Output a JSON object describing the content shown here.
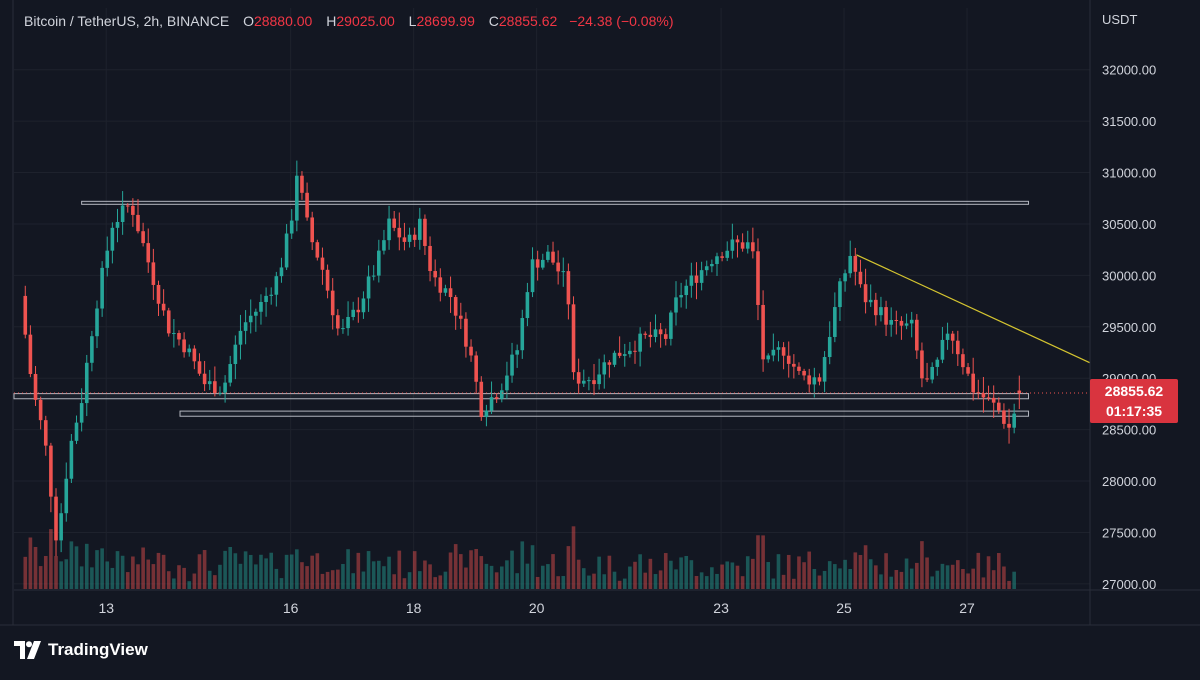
{
  "legend": {
    "symbol": "Bitcoin / TetherUS, 2h, BINANCE",
    "o_label": "O",
    "o_value": "28880.00",
    "h_label": "H",
    "h_value": "29025.00",
    "l_label": "L",
    "l_value": "28699.99",
    "c_label": "C",
    "c_value": "28855.62",
    "change": "−24.38 (−0.08%)"
  },
  "price_tag": {
    "price": "28855.62",
    "countdown": "01:17:35"
  },
  "branding": {
    "name": "TradingView"
  },
  "colors": {
    "background": "#131722",
    "grid": "#1e222d",
    "up": "#26a69a",
    "down": "#ef5350",
    "trendline": "#d4c430",
    "level": "#b2b5be",
    "price_tag": "#d9343f"
  },
  "chart_data": {
    "type": "candlestick",
    "currency": "USDT",
    "y_range": [
      26950,
      32600
    ],
    "y_ticks": [
      "32000.00",
      "31500.00",
      "31000.00",
      "30500.00",
      "30000.00",
      "29500.00",
      "29000.00",
      "28500.00",
      "28000.00",
      "27500.00",
      "27000.00"
    ],
    "x_range": [
      11.5,
      29
    ],
    "x_ticks": [
      {
        "day": 13,
        "label": "13"
      },
      {
        "day": 16,
        "label": "16"
      },
      {
        "day": 18,
        "label": "18"
      },
      {
        "day": 20,
        "label": "20"
      },
      {
        "day": 23,
        "label": "23"
      },
      {
        "day": 25,
        "label": "25"
      },
      {
        "day": 27,
        "label": "27"
      }
    ],
    "path": [
      [
        11.6,
        29800
      ],
      [
        11.8,
        28900
      ],
      [
        12.0,
        28400
      ],
      [
        12.2,
        27400
      ],
      [
        12.4,
        28300
      ],
      [
        12.6,
        28800
      ],
      [
        12.8,
        29600
      ],
      [
        13.1,
        30500
      ],
      [
        13.4,
        30700
      ],
      [
        13.7,
        30100
      ],
      [
        14.0,
        29500
      ],
      [
        14.3,
        29300
      ],
      [
        14.6,
        28950
      ],
      [
        14.9,
        28900
      ],
      [
        15.2,
        29500
      ],
      [
        15.5,
        29700
      ],
      [
        15.8,
        30000
      ],
      [
        16.0,
        30500
      ],
      [
        16.1,
        31000
      ],
      [
        16.3,
        30400
      ],
      [
        16.5,
        30100
      ],
      [
        16.8,
        29400
      ],
      [
        17.1,
        29700
      ],
      [
        17.4,
        30100
      ],
      [
        17.6,
        30500
      ],
      [
        17.9,
        30300
      ],
      [
        18.1,
        30500
      ],
      [
        18.3,
        30000
      ],
      [
        18.6,
        29800
      ],
      [
        18.9,
        29300
      ],
      [
        19.1,
        28700
      ],
      [
        19.4,
        28900
      ],
      [
        19.7,
        29300
      ],
      [
        19.9,
        30100
      ],
      [
        20.2,
        30200
      ],
      [
        20.5,
        29900
      ],
      [
        20.6,
        29000
      ],
      [
        20.9,
        29000
      ],
      [
        21.2,
        29200
      ],
      [
        21.5,
        29300
      ],
      [
        21.8,
        29400
      ],
      [
        22.1,
        29400
      ],
      [
        22.3,
        29800
      ],
      [
        22.6,
        30000
      ],
      [
        22.9,
        30200
      ],
      [
        23.2,
        30300
      ],
      [
        23.5,
        30300
      ],
      [
        23.7,
        29100
      ],
      [
        24.0,
        29300
      ],
      [
        24.3,
        29000
      ],
      [
        24.6,
        29000
      ],
      [
        24.9,
        29800
      ],
      [
        25.1,
        30200
      ],
      [
        25.3,
        29800
      ],
      [
        25.5,
        29700
      ],
      [
        25.8,
        29500
      ],
      [
        26.1,
        29500
      ],
      [
        26.3,
        28900
      ],
      [
        26.5,
        29100
      ],
      [
        26.7,
        29500
      ],
      [
        26.9,
        29200
      ],
      [
        27.1,
        28900
      ],
      [
        27.3,
        28800
      ],
      [
        27.5,
        28700
      ],
      [
        27.7,
        28500
      ],
      [
        27.85,
        28880
      ]
    ],
    "last_bar": {
      "open": 28880.0,
      "high": 29025.0,
      "low": 28699.99,
      "close": 28855.62
    },
    "levels": [
      {
        "x1": 12.6,
        "x2": 28.0,
        "y_top": 30720,
        "y_bottom": 30700
      },
      {
        "x1": 11.5,
        "x2": 28.0,
        "y_top": 28850,
        "y_bottom": 28800
      },
      {
        "x1": 14.2,
        "x2": 28.0,
        "y_top": 28680,
        "y_bottom": 28630
      }
    ],
    "trendline": {
      "x1": 25.2,
      "y1": 30200,
      "x2": 29.0,
      "y2": 29150
    }
  }
}
